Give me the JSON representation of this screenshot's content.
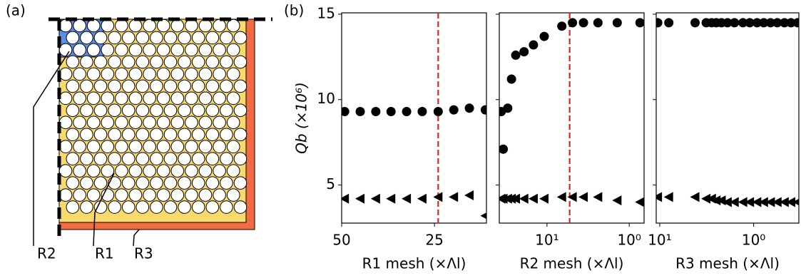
{
  "panel_a": {
    "label": "(a)",
    "regions": [
      "R2",
      "R1",
      "R3"
    ]
  },
  "panel_b_label": "(b)",
  "chart_data": [
    {
      "type": "scatter",
      "ylabel": "Qb (×10⁶)",
      "xlabel": "R1 mesh (×Λl)",
      "xscale": "linear",
      "xlim": [
        50,
        11
      ],
      "xticks": [
        50,
        25
      ],
      "ylim": [
        2.77,
        15.08
      ],
      "yticks": [
        5,
        10,
        15
      ],
      "vline": 24,
      "vline_color": "#e8201e",
      "series": [
        {
          "marker": "circle",
          "color": "#000000",
          "x": [
            49.2,
            45,
            40.8,
            36.7,
            32.5,
            28.3,
            24,
            19.8,
            15.6,
            11.3
          ],
          "values": [
            9.3,
            9.3,
            9.3,
            9.3,
            9.3,
            9.3,
            9.3,
            9.4,
            9.5,
            9.4
          ]
        },
        {
          "marker": "triangle-left",
          "color": "#000000",
          "x": [
            49.2,
            45,
            40.8,
            36.7,
            32.5,
            28.3,
            24,
            19.8,
            15.6,
            11.3
          ],
          "values": [
            4.2,
            4.2,
            4.2,
            4.2,
            4.2,
            4.2,
            4.3,
            4.3,
            4.4,
            3.2
          ]
        }
      ]
    },
    {
      "type": "scatter",
      "xlabel": "R2 mesh (×Λl)",
      "xscale": "log",
      "xlim": [
        38,
        0.66
      ],
      "xticks": [
        {
          "value": 10,
          "label": "10¹"
        },
        {
          "value": 1,
          "label": "10⁰"
        }
      ],
      "ylim": [
        2.77,
        15.08
      ],
      "vline": 5.3,
      "vline_color": "#e8201e",
      "series": [
        {
          "marker": "circle",
          "color": "#000000",
          "x": [
            36,
            34,
            30,
            27,
            24,
            19,
            14.6,
            10.8,
            6.6,
            4.9,
            3.6,
            2.4,
            1.4,
            0.74
          ],
          "values": [
            9.3,
            7.1,
            9.5,
            11.2,
            12.6,
            12.8,
            13.2,
            13.7,
            14.3,
            14.5,
            14.5,
            14.5,
            14.5,
            14.5
          ]
        },
        {
          "marker": "triangle-left",
          "color": "#000000",
          "x": [
            36,
            34,
            30,
            27,
            24,
            19,
            14.6,
            10.8,
            6.6,
            4.9,
            3.6,
            2.4,
            1.4,
            0.74
          ],
          "values": [
            4.2,
            4.2,
            4.2,
            4.2,
            4.2,
            4.2,
            4.2,
            4.2,
            4.3,
            4.3,
            4.3,
            4.3,
            4.1,
            4.0
          ]
        }
      ]
    },
    {
      "type": "scatter",
      "xlabel": "R3 mesh (×Λl)",
      "xscale": "log",
      "xlim": [
        10.9,
        0.33
      ],
      "xticks": [
        {
          "value": 10,
          "label": "10¹"
        },
        {
          "value": 1,
          "label": "10⁰"
        }
      ],
      "ylim": [
        2.77,
        15.08
      ],
      "series": [
        {
          "marker": "circle",
          "color": "#000000",
          "x": [
            10.5,
            8,
            4.2,
            3.2,
            2.8,
            2.5,
            2.2,
            1.9,
            1.6,
            1.3,
            1.1,
            0.92,
            0.78,
            0.66,
            0.56,
            0.47,
            0.4,
            0.34
          ],
          "values": [
            14.5,
            14.5,
            14.5,
            14.5,
            14.5,
            14.5,
            14.5,
            14.5,
            14.5,
            14.5,
            14.5,
            14.5,
            14.5,
            14.5,
            14.5,
            14.5,
            14.5,
            14.5
          ]
        },
        {
          "marker": "triangle-left",
          "color": "#000000",
          "x": [
            10.5,
            8,
            4.2,
            3.2,
            2.8,
            2.5,
            2.2,
            1.9,
            1.6,
            1.3,
            1.1,
            0.92,
            0.78,
            0.66,
            0.56,
            0.47,
            0.4,
            0.34
          ],
          "values": [
            4.3,
            4.3,
            4.3,
            4.2,
            4.2,
            4.1,
            4.1,
            4.0,
            4.0,
            4.0,
            4.0,
            4.0,
            4.0,
            4.0,
            4.0,
            4.0,
            4.0,
            4.0
          ]
        }
      ]
    }
  ]
}
